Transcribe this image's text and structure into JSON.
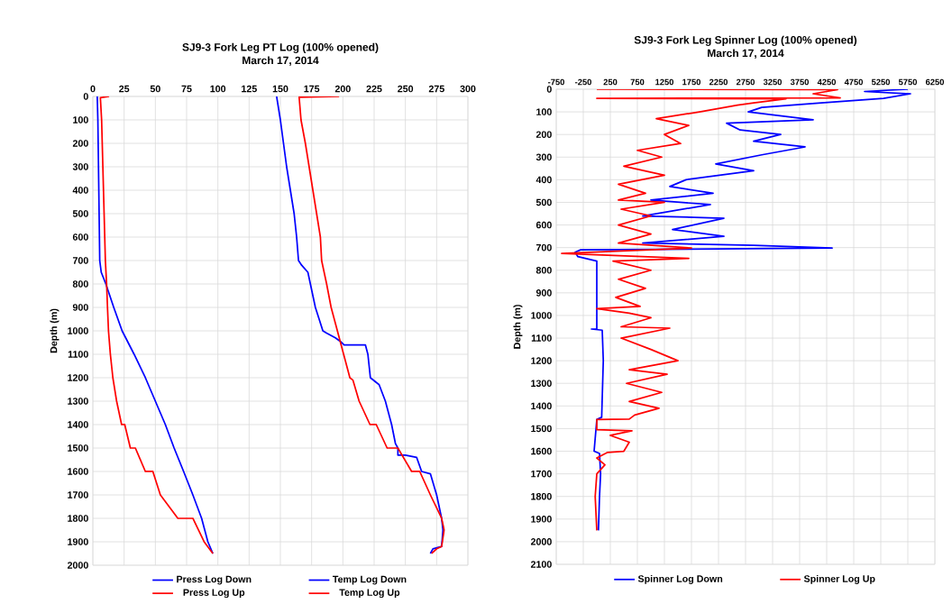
{
  "chart_data": [
    {
      "type": "line",
      "title": "SJ9-3 Fork Leg PT Log (100% opened)",
      "subtitle": "March 17, 2014",
      "ylabel": "Depth (m)",
      "xlim": [
        0,
        300
      ],
      "xticks": [
        0,
        25,
        50,
        75,
        100,
        125,
        150,
        175,
        200,
        225,
        250,
        275,
        300
      ],
      "ylim": [
        2000,
        0
      ],
      "yticks": [
        0,
        100,
        200,
        300,
        400,
        500,
        600,
        700,
        800,
        900,
        1000,
        1100,
        1200,
        1300,
        1400,
        1500,
        1600,
        1700,
        1800,
        1900,
        2000
      ],
      "grid": true,
      "legend": "bottom",
      "series": [
        {
          "name": "Press Log Down",
          "color": "#0000ff",
          "x": [
            3.5,
            4,
            4.5,
            5,
            5.5,
            6.7,
            10.4,
            16.7,
            23.4,
            33,
            42,
            50,
            58,
            65,
            72.6,
            80,
            87,
            92,
            96
          ],
          "values": [
            0,
            100,
            300,
            500,
            700,
            750,
            800,
            900,
            1000,
            1100,
            1200,
            1300,
            1400,
            1500,
            1600,
            1700,
            1800,
            1900,
            1950
          ]
        },
        {
          "name": "Press Log Up",
          "color": "#ff0000",
          "x": [
            13,
            6,
            7,
            8,
            9,
            10,
            11,
            11.7,
            12.5,
            14,
            16,
            19,
            23,
            25.5,
            30,
            34,
            42,
            48,
            54,
            61,
            68,
            80,
            89,
            96
          ],
          "values": [
            0,
            5,
            100,
            300,
            500,
            700,
            800,
            900,
            1000,
            1100,
            1200,
            1300,
            1400,
            1400,
            1500,
            1500,
            1600,
            1600,
            1700,
            1750,
            1800,
            1800,
            1900,
            1950
          ]
        },
        {
          "name": "Temp Log Down",
          "color": "#0000ff",
          "x": [
            147,
            150,
            152.5,
            155,
            158,
            161,
            163,
            164.5,
            167,
            172,
            174,
            178,
            184,
            187,
            194,
            198,
            201,
            218,
            220,
            222,
            229,
            234,
            239,
            242,
            244,
            244,
            250,
            259,
            263,
            270,
            275,
            279,
            280,
            279,
            272,
            270
          ],
          "values": [
            0,
            100,
            200,
            300,
            400,
            500,
            600,
            700,
            720,
            750,
            800,
            900,
            1000,
            1010,
            1030,
            1045,
            1060,
            1060,
            1100,
            1200,
            1230,
            1300,
            1400,
            1480,
            1500,
            1530,
            1530,
            1540,
            1600,
            1610,
            1700,
            1800,
            1850,
            1920,
            1930,
            1950
          ]
        },
        {
          "name": "Temp Log Up",
          "color": "#ff0000",
          "x": [
            197,
            165,
            166.5,
            170,
            173,
            176,
            179,
            182,
            183,
            187,
            190.6,
            195.6,
            200.6,
            205.6,
            208,
            213,
            221.7,
            226.7,
            235.4,
            244,
            255,
            261.5,
            270,
            279,
            281,
            279,
            275,
            271
          ],
          "values": [
            0,
            3,
            100,
            200,
            300,
            400,
            500,
            600,
            700,
            800,
            900,
            1000,
            1100,
            1200,
            1210,
            1300,
            1400,
            1400,
            1500,
            1500,
            1600,
            1600,
            1700,
            1800,
            1850,
            1920,
            1930,
            1950
          ]
        }
      ]
    },
    {
      "type": "line",
      "title": "SJ9-3 Fork Leg Spinner Log (100% opened)",
      "subtitle": "March 17, 2014",
      "ylabel": "Depth (m)",
      "xlim": [
        -750,
        6250
      ],
      "xticks": [
        -750,
        -250,
        250,
        750,
        1250,
        1750,
        2250,
        2750,
        3250,
        3750,
        4250,
        4750,
        5250,
        5750,
        6250
      ],
      "ylim": [
        2100,
        0
      ],
      "yticks": [
        0,
        100,
        200,
        300,
        400,
        500,
        600,
        700,
        800,
        900,
        1000,
        1100,
        1200,
        1300,
        1400,
        1500,
        1600,
        1700,
        1800,
        1900,
        2000,
        2100
      ],
      "grid": true,
      "legend": "bottom",
      "series": [
        {
          "name": "Spinner Log Down",
          "color": "#0000ff",
          "x": [
            5750,
            4950,
            5800,
            5300,
            4150,
            3050,
            2800,
            4000,
            2400,
            2650,
            3400,
            2900,
            3850,
            3050,
            2200,
            2900,
            1650,
            1350,
            2150,
            1000,
            2100,
            850,
            2350,
            1400,
            2350,
            850,
            2900,
            4350,
            -300,
            -400,
            -350,
            0,
            0,
            -100,
            100,
            120,
            90,
            0,
            -50,
            50,
            70,
            50,
            30
          ],
          "values": [
            0,
            10,
            20,
            40,
            60,
            80,
            100,
            135,
            150,
            180,
            200,
            230,
            255,
            290,
            330,
            360,
            400,
            430,
            460,
            490,
            510,
            560,
            570,
            620,
            650,
            680,
            690,
            702,
            710,
            720,
            740,
            760,
            1060,
            1060,
            1065,
            1200,
            1450,
            1460,
            1600,
            1610,
            1700,
            1800,
            1950
          ]
        },
        {
          "name": "Spinner Log Up",
          "color": "#ff0000",
          "x": [
            0,
            4450,
            4000,
            4500,
            0,
            3500,
            2900,
            2600,
            1900,
            1100,
            1700,
            1250,
            1550,
            750,
            1200,
            500,
            1250,
            400,
            900,
            400,
            1250,
            450,
            1000,
            400,
            1000,
            400,
            1750,
            -650,
            1700,
            300,
            1000,
            400,
            900,
            350,
            800,
            0,
            600,
            1000,
            450,
            1350,
            450,
            1000,
            1500,
            600,
            1300,
            550,
            1200,
            600,
            1150,
            700,
            600,
            0,
            0,
            650,
            250,
            600,
            500,
            200,
            0,
            150,
            0,
            -30,
            0
          ],
          "values": [
            0,
            2,
            20,
            38,
            40,
            42,
            60,
            70,
            100,
            130,
            160,
            200,
            240,
            270,
            300,
            340,
            380,
            420,
            460,
            490,
            500,
            530,
            560,
            600,
            640,
            680,
            702,
            726,
            748,
            760,
            800,
            840,
            880,
            920,
            960,
            970,
            990,
            1010,
            1050,
            1056,
            1100,
            1150,
            1200,
            1240,
            1260,
            1300,
            1340,
            1380,
            1410,
            1440,
            1458,
            1460,
            1505,
            1510,
            1530,
            1560,
            1600,
            1605,
            1630,
            1660,
            1700,
            1800,
            1950
          ]
        }
      ]
    }
  ]
}
